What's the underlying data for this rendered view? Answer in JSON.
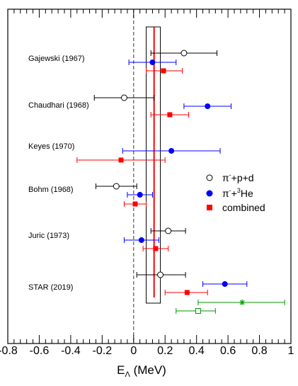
{
  "chart_data": {
    "type": "scatter",
    "xlabel_main": "E",
    "xlabel_sub": "Λ",
    "xlabel_unit": " (MeV)",
    "xlim": [
      -0.8,
      1.0
    ],
    "xticks": [
      -0.8,
      -0.6,
      -0.4,
      -0.2,
      0,
      0.2,
      0.4,
      0.6,
      0.8,
      1
    ],
    "xtick_labels": [
      "-0.8",
      "-0.6",
      "-0.4",
      "-0.2",
      "0",
      "0.2",
      "0.4",
      "0.6",
      "0.8",
      "1"
    ],
    "zero_line": 0,
    "average": {
      "value": 0.13,
      "band": [
        0.08,
        0.17
      ]
    },
    "experiments": [
      {
        "label": "Gajewski (1967)",
        "pipd": {
          "x": 0.32,
          "lo": 0.11,
          "hi": 0.53
        },
        "pihe": {
          "x": 0.12,
          "lo": -0.03,
          "hi": 0.27
        },
        "comb": {
          "x": 0.19,
          "lo": 0.08,
          "hi": 0.31
        }
      },
      {
        "label": "Chaudhari (1968)",
        "pipd": {
          "x": -0.06,
          "lo": -0.25,
          "hi": 0.13
        },
        "pihe": {
          "x": 0.47,
          "lo": 0.32,
          "hi": 0.62
        },
        "comb": {
          "x": 0.23,
          "lo": 0.11,
          "hi": 0.35
        }
      },
      {
        "label": "Keyes (1970)",
        "pipd": null,
        "pihe": {
          "x": 0.24,
          "lo": -0.07,
          "hi": 0.55
        },
        "comb": {
          "x": -0.08,
          "lo": -0.36,
          "hi": 0.2
        }
      },
      {
        "label": "Bohm (1968)",
        "pipd": {
          "x": -0.11,
          "lo": -0.24,
          "hi": 0.02
        },
        "pihe": {
          "x": 0.04,
          "lo": -0.04,
          "hi": 0.12
        },
        "comb": {
          "x": 0.01,
          "lo": -0.06,
          "hi": 0.08
        }
      },
      {
        "label": "Juric (1973)",
        "pipd": {
          "x": 0.22,
          "lo": 0.11,
          "hi": 0.33
        },
        "pihe": {
          "x": 0.05,
          "lo": -0.06,
          "hi": 0.16
        },
        "comb": {
          "x": 0.14,
          "lo": 0.06,
          "hi": 0.22
        }
      },
      {
        "label": "STAR (2019)",
        "pipd": {
          "x": 0.17,
          "lo": 0.02,
          "hi": 0.33
        },
        "pihe": {
          "x": 0.58,
          "lo": 0.44,
          "hi": 0.72
        },
        "comb": {
          "x": 0.34,
          "lo": 0.2,
          "hi": 0.47
        },
        "extra_star": {
          "x": 0.69,
          "lo": 0.41,
          "hi": 0.96
        },
        "extra_open_square": {
          "x": 0.41,
          "lo": 0.27,
          "hi": 0.52
        }
      }
    ],
    "legend": [
      {
        "label": "π",
        "sup": "-",
        "rest": "+p+d",
        "marker": "open-circle",
        "color": "#000000"
      },
      {
        "label": "π",
        "sup": "-",
        "rest": "+",
        "sup2": "3",
        "rest2": "He",
        "marker": "filled-circle",
        "color": "#0000ff"
      },
      {
        "label": "combined",
        "marker": "filled-square",
        "color": "#ff0000"
      }
    ],
    "colors": {
      "pipd": "#000000",
      "pihe": "#0000ff",
      "comb": "#ff0000",
      "average": "#ff0000",
      "extra": "#009900"
    }
  }
}
